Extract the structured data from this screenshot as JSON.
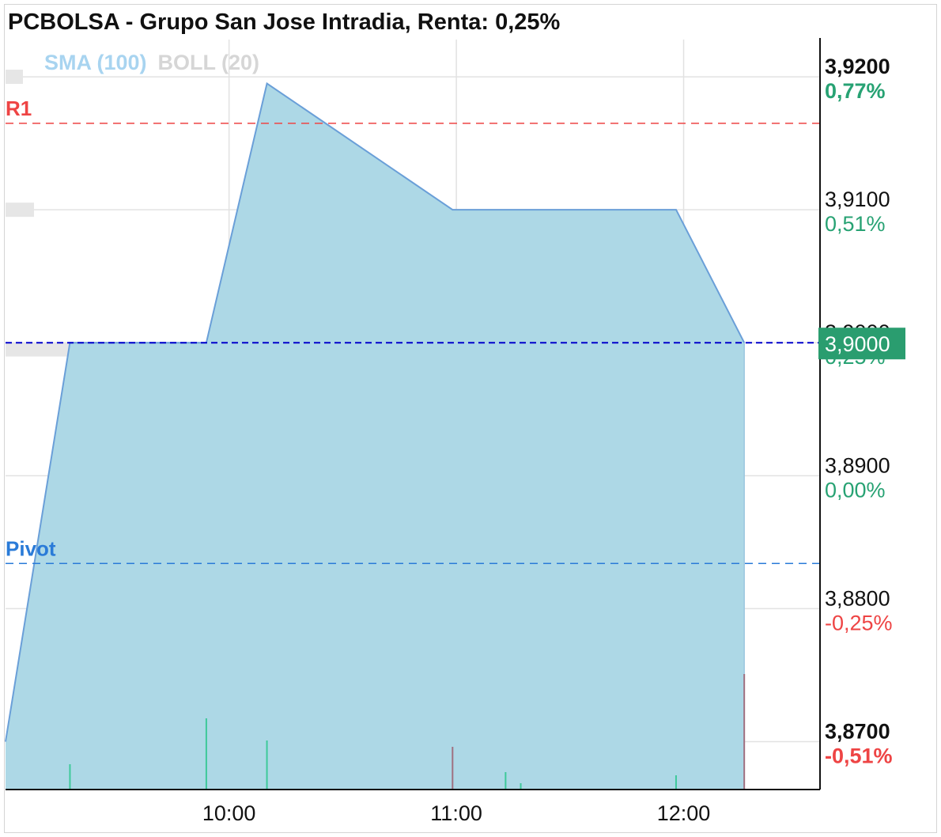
{
  "header": {
    "title": "PCBOLSA - Grupo San Jose Intradia, Renta: 0,25%"
  },
  "legend": [
    {
      "label": "SMA (100)",
      "color": "#a8d4f0"
    },
    {
      "label": "BOLL (20)",
      "color": "#d6d6d6"
    }
  ],
  "colors": {
    "area_fill": "#add8e6",
    "area_line": "#6a9fd8",
    "up": "#27a273",
    "down": "#ee4444",
    "resistance": "#ee4444",
    "pivot": "#2a7bd8",
    "last": "#0000cc"
  },
  "chart_data": {
    "type": "area",
    "title": "PCBOLSA - Grupo San Jose Intradia, Renta: 0,25%",
    "x_ticks": [
      {
        "label": "10:00",
        "t": 600
      },
      {
        "label": "11:00",
        "t": 660
      },
      {
        "label": "12:00",
        "t": 720
      }
    ],
    "xlim": [
      541,
      756
    ],
    "ylim": [
      3.8664,
      3.9228
    ],
    "y_ticks": [
      {
        "price": "3,9200",
        "pct": "0,77%",
        "value": 3.92,
        "dir": "up",
        "bold": true
      },
      {
        "price": "3,9100",
        "pct": "0,51%",
        "value": 3.91,
        "dir": "up",
        "bold": false
      },
      {
        "price": "3,9000",
        "pct": "0,25%",
        "value": 3.9,
        "dir": "up",
        "bold": false
      },
      {
        "price": "3,8900",
        "pct": "0,00%",
        "value": 3.89,
        "dir": "up",
        "bold": false
      },
      {
        "price": "3,8800",
        "pct": "-0,25%",
        "value": 3.88,
        "dir": "down",
        "bold": false
      },
      {
        "price": "3,8700",
        "pct": "-0,51%",
        "value": 3.87,
        "dir": "down",
        "bold": true
      }
    ],
    "series": [
      {
        "points": [
          {
            "t": 541,
            "y": 3.87
          },
          {
            "t": 558,
            "y": 3.9
          },
          {
            "t": 594,
            "y": 3.9
          },
          {
            "t": 610,
            "y": 3.9195
          },
          {
            "t": 659,
            "y": 3.91
          },
          {
            "t": 718,
            "y": 3.91
          },
          {
            "t": 736,
            "y": 3.9
          }
        ]
      }
    ],
    "volume": [
      {
        "t": 558,
        "h": 32,
        "dir": "up"
      },
      {
        "t": 594,
        "h": 90,
        "dir": "up"
      },
      {
        "t": 610,
        "h": 62,
        "dir": "up"
      },
      {
        "t": 659,
        "h": 54,
        "dir": "down"
      },
      {
        "t": 673,
        "h": 22,
        "dir": "up"
      },
      {
        "t": 677,
        "h": 8,
        "dir": "up"
      },
      {
        "t": 718,
        "h": 18,
        "dir": "up"
      },
      {
        "t": 736,
        "h": 146,
        "dir": "down"
      }
    ],
    "levels": [
      {
        "label": "R1",
        "value": 3.9165,
        "kind": "resistance"
      },
      {
        "label": "Pivot",
        "value": 3.8834,
        "kind": "pivot"
      },
      {
        "label": "",
        "value": 3.9,
        "kind": "last"
      }
    ],
    "last_price": {
      "label": "3,9000",
      "value": 3.9
    },
    "grid": true
  }
}
